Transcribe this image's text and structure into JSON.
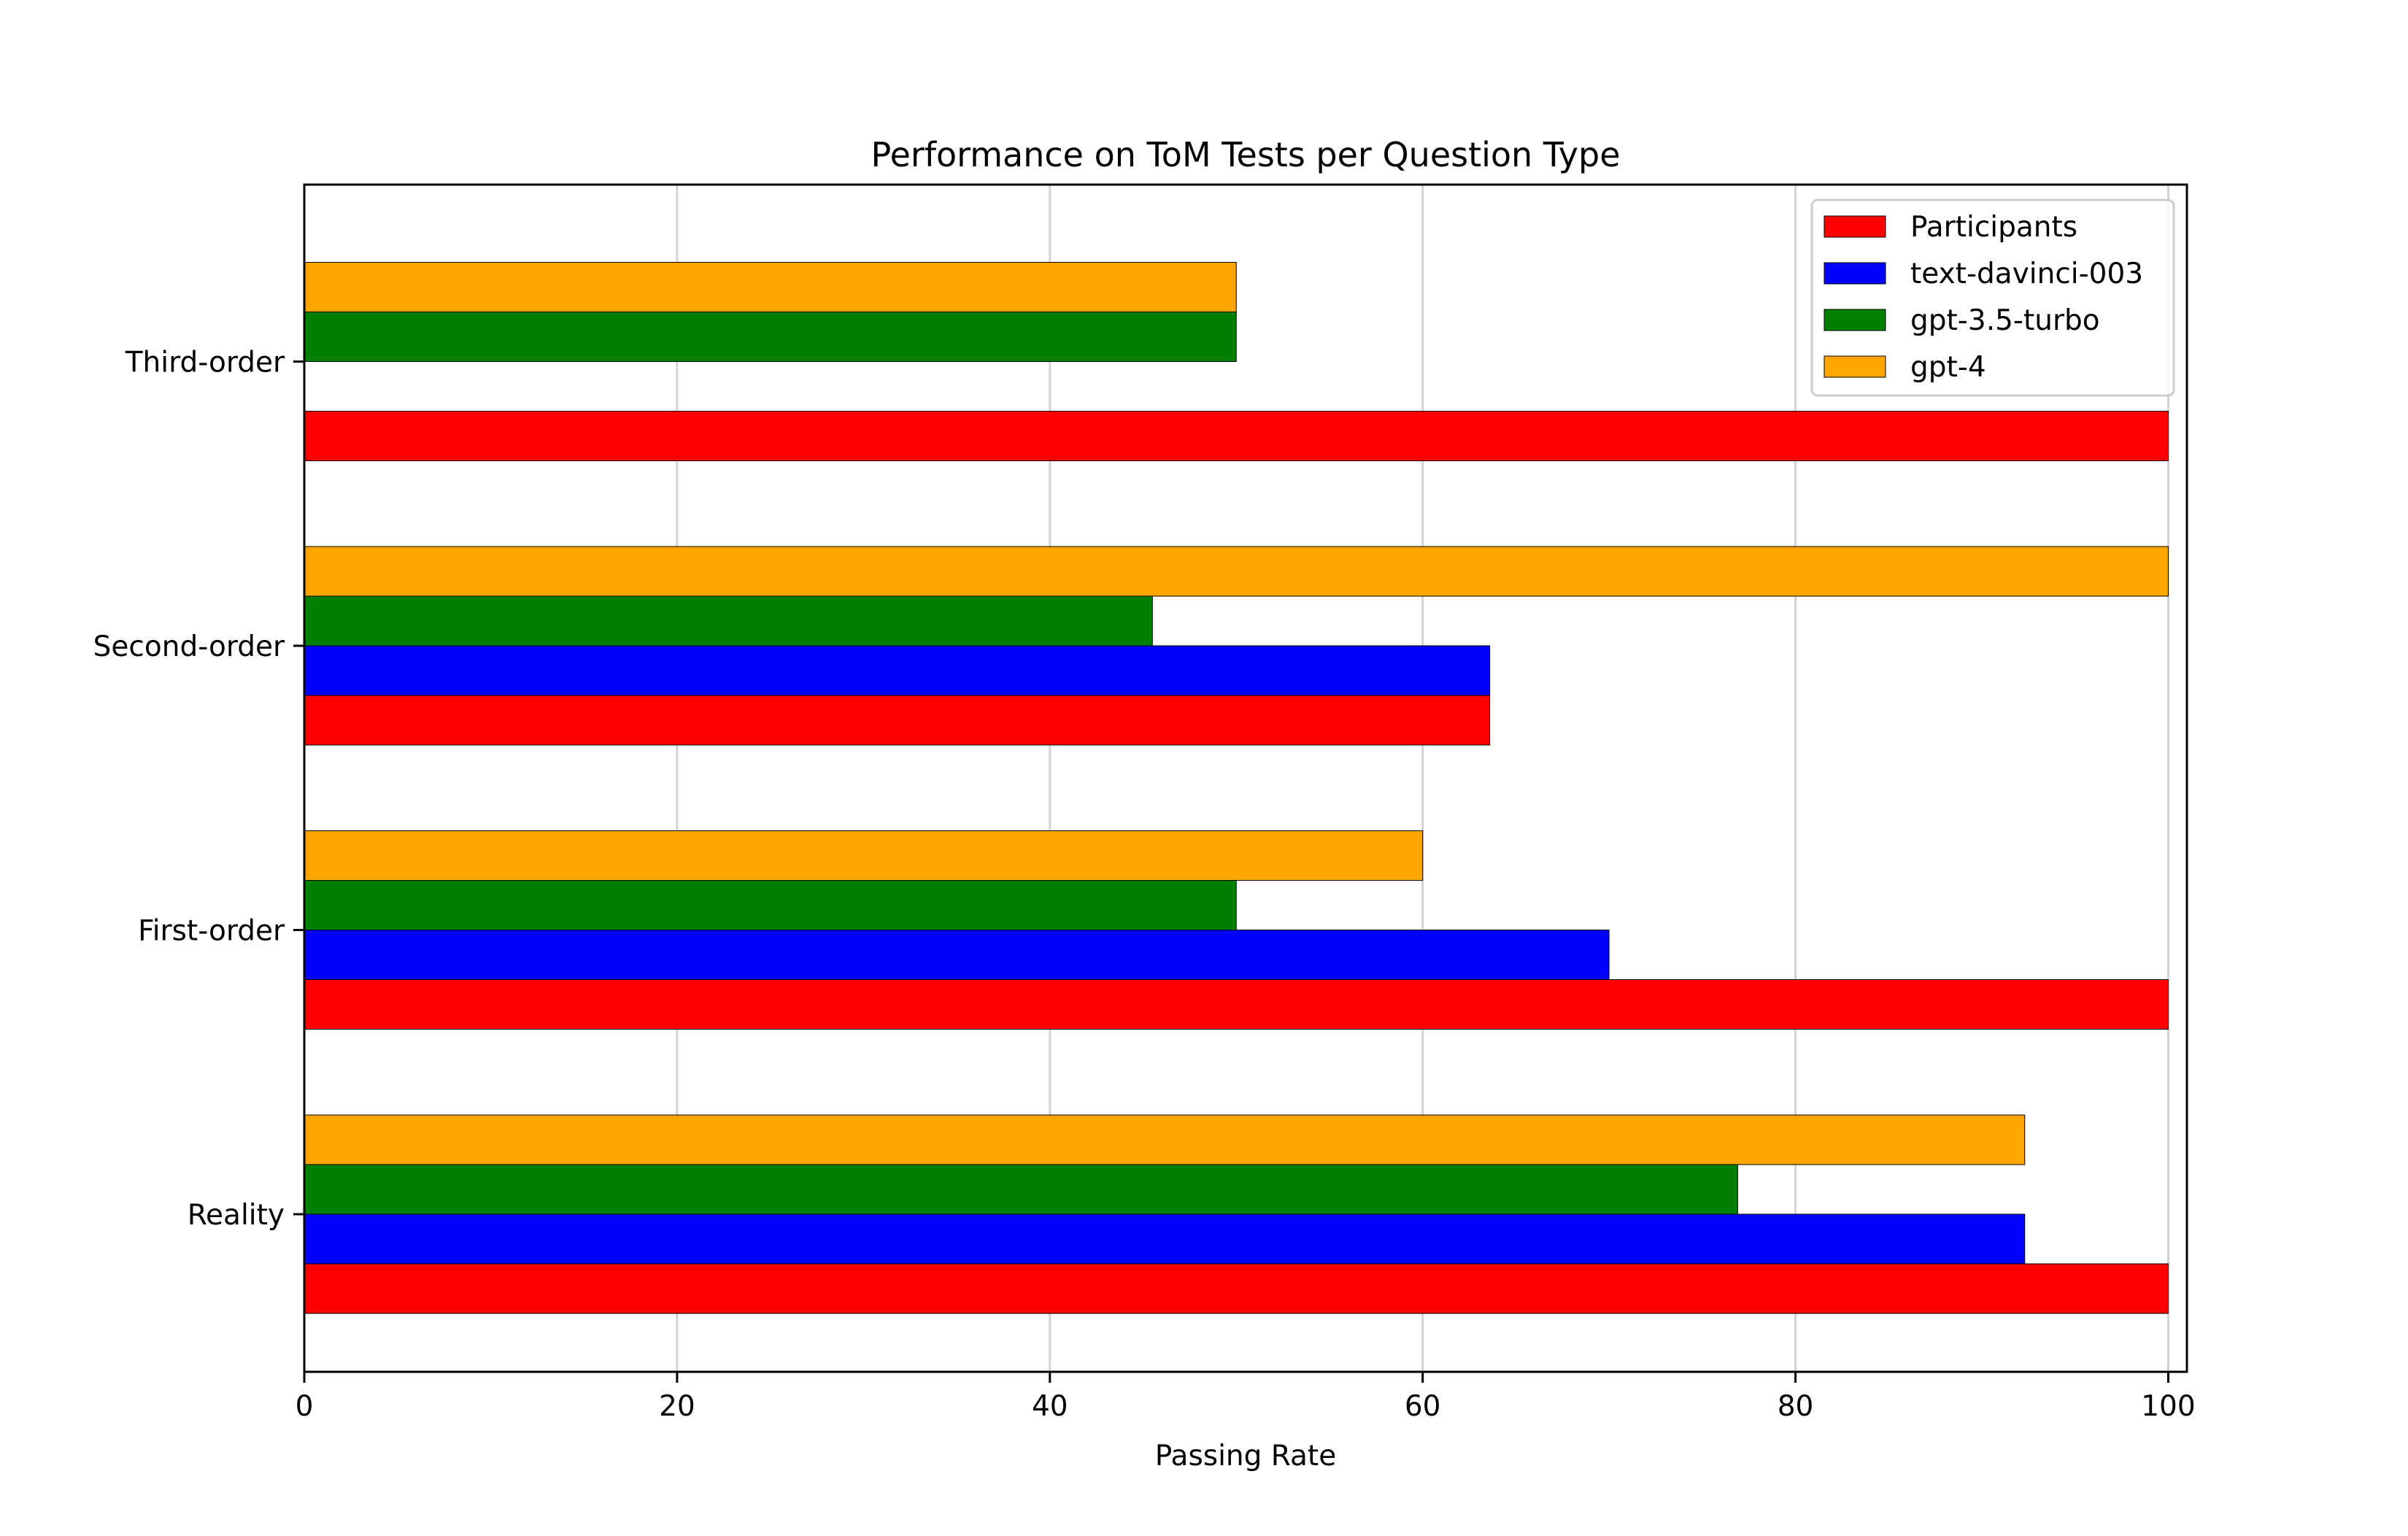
{
  "chart_data": {
    "type": "bar",
    "orientation": "horizontal",
    "title": "Performance on ToM Tests per Question Type",
    "xlabel": "Passing Rate",
    "ylabel": "",
    "categories": [
      "Reality",
      "First-order",
      "Second-order",
      "Third-order"
    ],
    "xlim": [
      0,
      101
    ],
    "xticks": [
      "0",
      "20",
      "40",
      "60",
      "80",
      "100"
    ],
    "grid": "vertical",
    "legend_position": "top-right",
    "series": [
      {
        "name": "Participants",
        "color": "#ff0000",
        "values": [
          100,
          100,
          63.6,
          100
        ]
      },
      {
        "name": "text-davinci-003",
        "color": "#0000ff",
        "values": [
          92.3,
          70,
          63.6,
          0
        ]
      },
      {
        "name": "gpt-3.5-turbo",
        "color": "#008000",
        "values": [
          76.9,
          50,
          45.5,
          50
        ]
      },
      {
        "name": "gpt-4",
        "color": "#ffa500",
        "values": [
          92.3,
          60,
          100,
          50
        ]
      }
    ]
  }
}
